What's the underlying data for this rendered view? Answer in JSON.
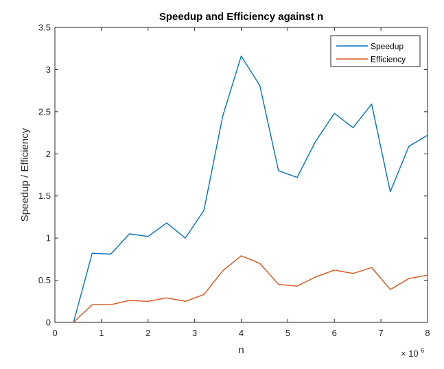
{
  "chart_data": {
    "type": "line",
    "title": "Speedup and Efficiency against n",
    "xlabel": "n",
    "ylabel": "Speedup / Efficiency",
    "x_multiplier": {
      "base": "× 10",
      "exponent": "6"
    },
    "xlim": [
      0,
      8
    ],
    "ylim": [
      0,
      3.5
    ],
    "x_ticks": [
      0,
      1,
      2,
      3,
      4,
      5,
      6,
      7,
      8
    ],
    "y_ticks": [
      0,
      0.5,
      1,
      1.5,
      2,
      2.5,
      3,
      3.5
    ],
    "x_tick_labels": [
      "0",
      "1",
      "2",
      "3",
      "4",
      "5",
      "6",
      "7",
      "8"
    ],
    "y_tick_labels": [
      "0",
      "0.5",
      "1",
      "1.5",
      "2",
      "2.5",
      "3",
      "3.5"
    ],
    "x": [
      0.4,
      0.8,
      1.2,
      1.6,
      2.0,
      2.4,
      2.8,
      3.2,
      3.6,
      4.0,
      4.4,
      4.8,
      5.2,
      5.6,
      6.0,
      6.4,
      6.8,
      7.2,
      7.6,
      8.0
    ],
    "series": [
      {
        "name": "Speedup",
        "color": "#0072BD",
        "values": [
          0.0,
          0.82,
          0.81,
          1.05,
          1.02,
          1.18,
          1.0,
          1.33,
          2.44,
          3.16,
          2.81,
          1.8,
          1.72,
          2.15,
          2.48,
          2.31,
          2.59,
          1.55,
          2.09,
          2.22
        ]
      },
      {
        "name": "Efficiency",
        "color": "#D95319",
        "values": [
          0.0,
          0.21,
          0.21,
          0.26,
          0.25,
          0.29,
          0.25,
          0.33,
          0.61,
          0.79,
          0.7,
          0.45,
          0.43,
          0.54,
          0.62,
          0.58,
          0.65,
          0.39,
          0.52,
          0.56
        ]
      }
    ],
    "legend_position": "top-right",
    "grid": false
  }
}
